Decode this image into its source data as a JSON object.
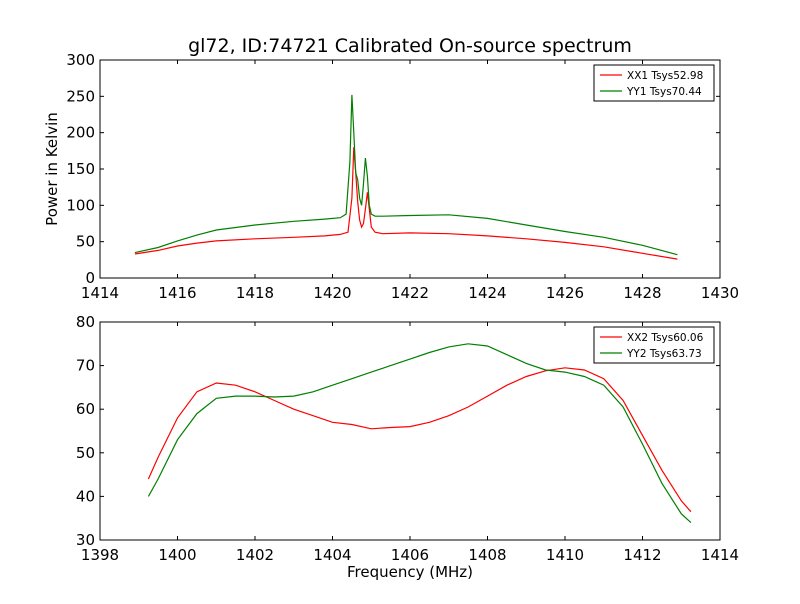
{
  "title": "gl72, ID:74721 Calibrated On-source spectrum",
  "colors": {
    "xx": "#ff0000",
    "yy": "#008000"
  },
  "chart_data": [
    {
      "type": "line",
      "title": "gl72, ID:74721 Calibrated On-source spectrum",
      "xlabel": "",
      "ylabel": "Power in Kelvin",
      "xlim": [
        1414,
        1430
      ],
      "ylim": [
        0,
        300
      ],
      "xticks": [
        1414,
        1416,
        1418,
        1420,
        1422,
        1424,
        1426,
        1428,
        1430
      ],
      "yticks": [
        0,
        50,
        100,
        150,
        200,
        250,
        300
      ],
      "legend_position": "top-right",
      "series": [
        {
          "name": "XX1 Tsys52.98",
          "color": "#ff0000",
          "x": [
            1414.9,
            1415.5,
            1416.0,
            1416.5,
            1417.0,
            1418.0,
            1419.0,
            1419.8,
            1420.2,
            1420.4,
            1420.5,
            1420.55,
            1420.6,
            1420.65,
            1420.7,
            1420.75,
            1420.8,
            1420.85,
            1420.9,
            1420.95,
            1421.0,
            1421.1,
            1421.3,
            1422.0,
            1423.0,
            1424.0,
            1425.0,
            1426.0,
            1427.0,
            1428.0,
            1428.9
          ],
          "y": [
            33,
            38,
            44,
            48,
            51,
            54,
            56,
            58,
            60,
            63,
            110,
            180,
            145,
            105,
            80,
            70,
            75,
            95,
            118,
            95,
            70,
            63,
            61,
            62,
            61,
            58,
            54,
            49,
            43,
            34,
            26
          ]
        },
        {
          "name": "YY1 Tsys70.44",
          "color": "#008000",
          "x": [
            1414.9,
            1415.5,
            1416.0,
            1416.5,
            1417.0,
            1418.0,
            1419.0,
            1419.8,
            1420.2,
            1420.35,
            1420.45,
            1420.5,
            1420.55,
            1420.6,
            1420.65,
            1420.7,
            1420.75,
            1420.8,
            1420.85,
            1420.9,
            1420.95,
            1421.0,
            1421.1,
            1421.3,
            1422.0,
            1423.0,
            1424.0,
            1425.0,
            1426.0,
            1427.0,
            1428.0,
            1428.9
          ],
          "y": [
            35,
            42,
            51,
            59,
            66,
            73,
            78,
            81,
            83,
            88,
            160,
            252,
            200,
            145,
            135,
            110,
            100,
            130,
            165,
            140,
            100,
            88,
            85,
            85,
            86,
            87,
            82,
            73,
            64,
            56,
            45,
            32
          ]
        }
      ]
    },
    {
      "type": "line",
      "title": "",
      "xlabel": "Frequency (MHz)",
      "ylabel": "",
      "xlim": [
        1398,
        1414
      ],
      "ylim": [
        30,
        80
      ],
      "xticks": [
        1398,
        1400,
        1402,
        1404,
        1406,
        1408,
        1410,
        1412,
        1414
      ],
      "yticks": [
        30,
        40,
        50,
        60,
        70,
        80
      ],
      "legend_position": "top-right",
      "series": [
        {
          "name": "XX2 Tsys60.06",
          "color": "#ff0000",
          "x": [
            1399.25,
            1399.5,
            1400.0,
            1400.5,
            1401.0,
            1401.5,
            1402.0,
            1402.5,
            1403.0,
            1403.5,
            1404.0,
            1404.5,
            1405.0,
            1405.5,
            1406.0,
            1406.5,
            1407.0,
            1407.5,
            1408.0,
            1408.5,
            1409.0,
            1409.5,
            1410.0,
            1410.5,
            1411.0,
            1411.5,
            1412.0,
            1412.5,
            1413.0,
            1413.25
          ],
          "y": [
            44,
            49,
            58,
            64,
            66,
            65.5,
            64,
            62,
            60,
            58.5,
            57,
            56.5,
            55.5,
            55.8,
            56,
            57,
            58.5,
            60.5,
            63,
            65.5,
            67.5,
            68.8,
            69.5,
            69,
            67,
            62,
            54,
            46,
            39,
            36.5
          ]
        },
        {
          "name": "YY2 Tsys63.73",
          "color": "#008000",
          "x": [
            1399.25,
            1399.5,
            1400.0,
            1400.5,
            1401.0,
            1401.5,
            1402.0,
            1402.5,
            1403.0,
            1403.5,
            1404.0,
            1404.5,
            1405.0,
            1405.5,
            1406.0,
            1406.5,
            1407.0,
            1407.5,
            1408.0,
            1408.5,
            1409.0,
            1409.5,
            1410.0,
            1410.5,
            1411.0,
            1411.5,
            1412.0,
            1412.5,
            1413.0,
            1413.25
          ],
          "y": [
            40,
            44,
            53,
            59,
            62.5,
            63,
            63,
            62.8,
            63,
            64,
            65.5,
            67,
            68.5,
            70,
            71.5,
            73,
            74.3,
            75,
            74.5,
            72.5,
            70.5,
            69,
            68.5,
            67.5,
            65.5,
            60.5,
            52,
            43,
            36,
            34
          ]
        }
      ]
    }
  ]
}
